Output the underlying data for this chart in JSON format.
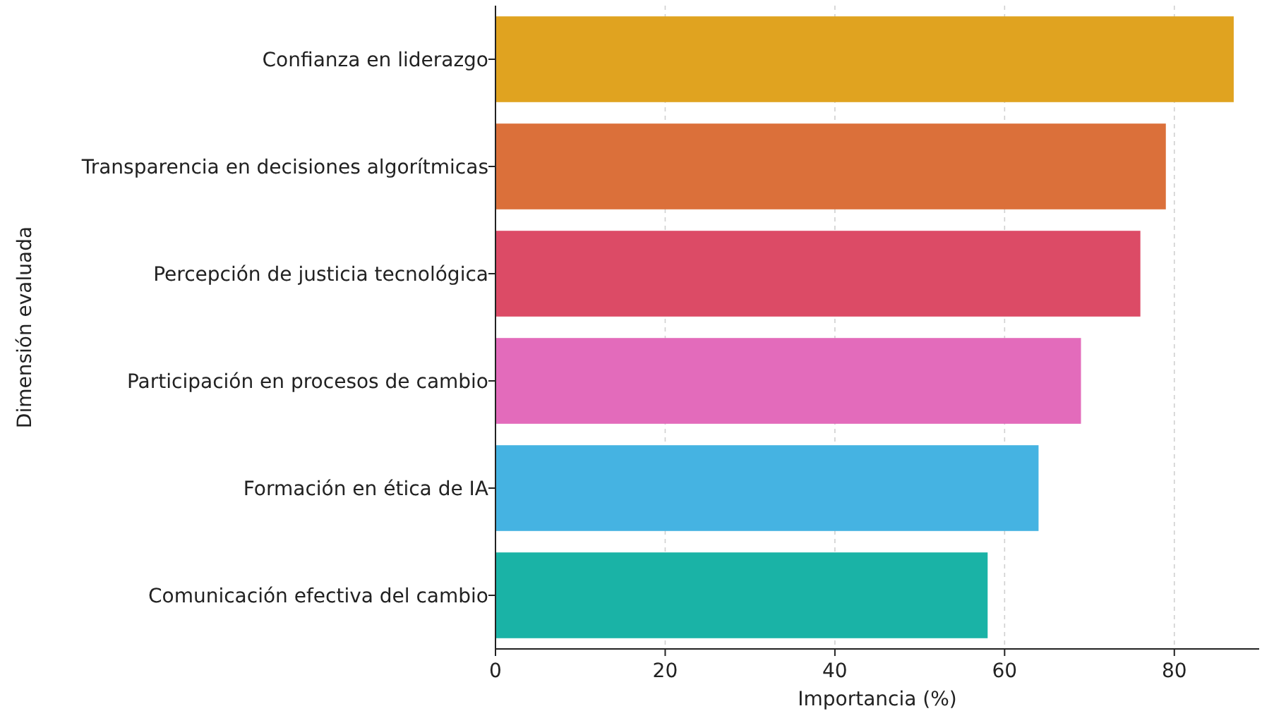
{
  "chart_data": {
    "type": "bar",
    "orientation": "horizontal",
    "xlabel": "Importancia (%)",
    "ylabel": "Dimensión evaluada",
    "categories": [
      "Confianza en liderazgo",
      "Transparencia en decisiones algorítmicas",
      "Percepción de justicia tecnológica",
      "Participación en procesos de cambio",
      "Formación en ética de IA",
      "Comunicación efectiva del cambio"
    ],
    "values": [
      87,
      79,
      76,
      69,
      64,
      58
    ],
    "colors": [
      "#e0a320",
      "#db703a",
      "#dc4b66",
      "#e36bbb",
      "#45b3e2",
      "#1ab3a6"
    ],
    "xlim": [
      0,
      90
    ],
    "xticks": [
      0,
      20,
      40,
      60,
      80
    ],
    "grid": "x"
  }
}
